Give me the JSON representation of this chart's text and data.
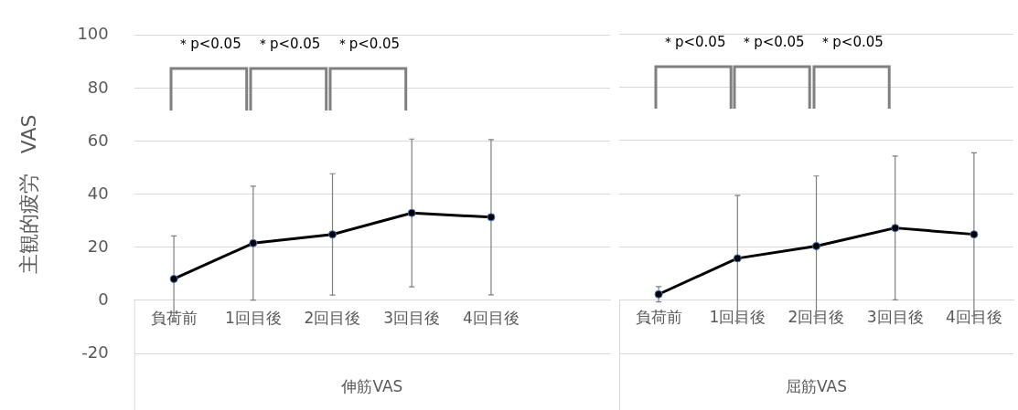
{
  "chart_data": [
    {
      "type": "line",
      "ylabel": "主観的疲労　VAS",
      "xlabel": "伸筋VAS",
      "categories": [
        "負荷前",
        "1回目後",
        "2回目後",
        "3回目後",
        "4回目後",
        null
      ],
      "series": [
        {
          "color": "#000000",
          "values": [
            8.1,
            21.6,
            24.9,
            33.0,
            31.4,
            null
          ],
          "errors": [
            16.2,
            21.5,
            22.9,
            27.9,
            29.3,
            null
          ]
        }
      ],
      "ylim": [
        -20,
        100
      ],
      "yticks": [
        -20,
        0,
        20,
        40,
        60,
        80,
        100
      ],
      "grid": "y",
      "marker": "circle",
      "line_style": "solid",
      "annotations": [
        "＊p<0.05",
        "＊p<0.05",
        "＊p<0.05"
      ]
    },
    {
      "type": "line",
      "xlabel": "屈筋VAS",
      "categories": [
        "負荷前",
        "1回目後",
        "2回目後",
        "3回目後",
        "4回目後"
      ],
      "series": [
        {
          "color": "#000000",
          "values": [
            2.2,
            15.7,
            20.3,
            27.1,
            24.7
          ],
          "errors": [
            2.9,
            23.6,
            26.3,
            27.0,
            30.6
          ]
        }
      ],
      "ylim": [
        -20,
        100
      ],
      "yticks": [
        -20,
        0,
        20,
        40,
        60,
        80,
        100
      ],
      "grid": "y",
      "marker": "circle",
      "line_style": "solid",
      "tick_labels": "x",
      "annotations": [
        "＊p<0.05",
        "＊p<0.05",
        "＊p<0.05"
      ]
    }
  ]
}
